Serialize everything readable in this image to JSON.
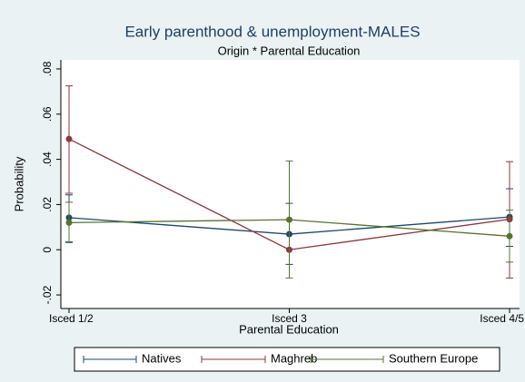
{
  "chart_data": {
    "type": "line",
    "title": "Early parenthood & unemployment-MALES",
    "subtitle": "Origin * Parental Education",
    "x_label": "Parental Education",
    "y_label": "Probability",
    "categories": [
      "Isced 1/2",
      "Isced 3",
      "Isced 4/5"
    ],
    "series": [
      {
        "name": "Natives",
        "color": "#1a476f",
        "values": [
          0.0142,
          0.0069,
          0.0145
        ],
        "lower": [
          0.0032,
          -0.0065,
          0.0015
        ],
        "upper": [
          0.0243,
          0.0205,
          0.027
        ]
      },
      {
        "name": "Maghreb",
        "color": "#90353b",
        "values": [
          0.049,
          0.0,
          0.0135
        ],
        "lower": [
          0.025,
          0.0,
          -0.0125
        ],
        "upper": [
          0.0725,
          0.0,
          0.039
        ]
      },
      {
        "name": "Southern Europe",
        "color": "#55752f",
        "values": [
          0.012,
          0.0133,
          0.006
        ],
        "lower": [
          0.0035,
          -0.0125,
          -0.0055
        ],
        "upper": [
          0.021,
          0.0393,
          0.0175
        ]
      }
    ],
    "ylim": [
      -0.026,
      0.084
    ],
    "yticks": [
      {
        "value": -0.02,
        "label": "-.02"
      },
      0,
      {
        "value": 0.02,
        "label": ".02"
      },
      {
        "value": 0.04,
        "label": ".04"
      },
      {
        "value": 0.06,
        "label": ".06"
      },
      {
        "value": 0.08,
        "label": ".08"
      }
    ],
    "legend": "bottom"
  }
}
